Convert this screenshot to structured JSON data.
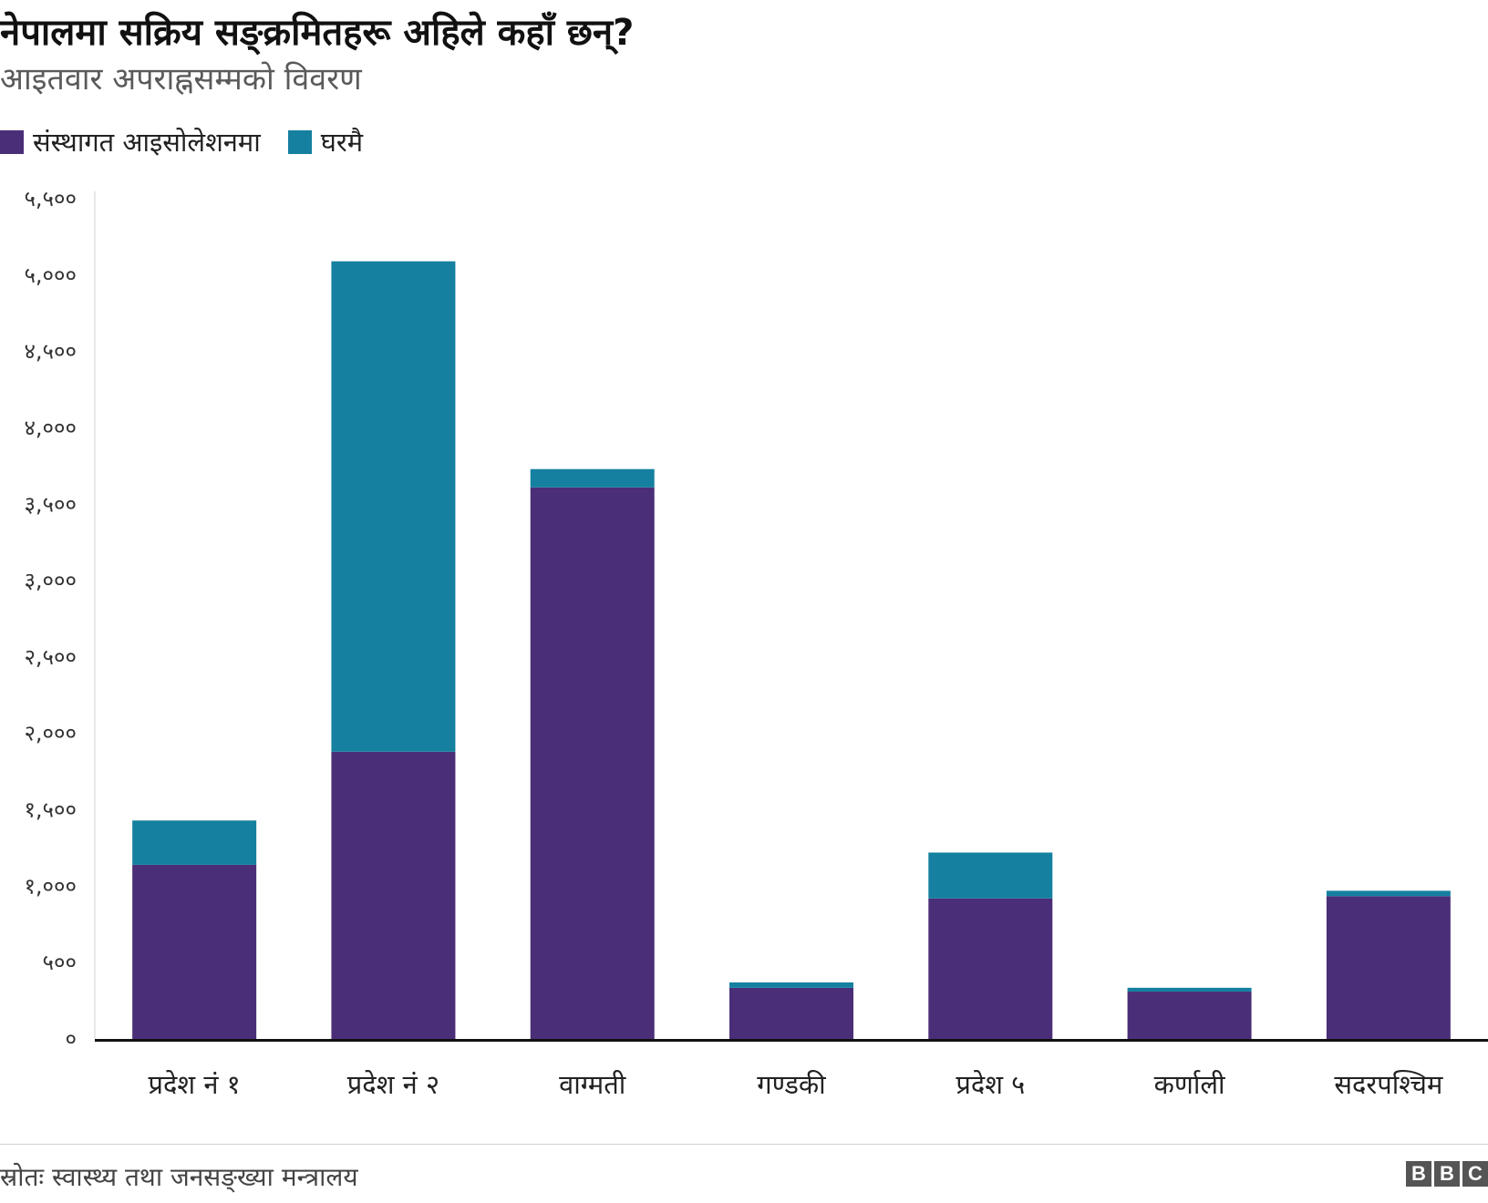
{
  "title": "नेपालमा सक्रिय सङ्क्रमितहरू अहिले कहाँ छन्?",
  "subtitle": "आइतवार अपराह्नसम्मको विवरण",
  "source": "स्रोतः स्वास्थ्य तथा जनसङ्ख्या मन्त्रालय",
  "logo": [
    "B",
    "B",
    "C"
  ],
  "colors": {
    "institutional": "#4b2e78",
    "home": "#1580a0"
  },
  "chart_data": {
    "type": "bar",
    "stacked": true,
    "categories": [
      "प्रदेश नं १",
      "प्रदेश नं २",
      "वाग्मती",
      "गण्डकी",
      "प्रदेश ५",
      "कर्णाली",
      "सुदूरपश्चिम"
    ],
    "series": [
      {
        "name": "संस्थागत आइसोलेशनमा",
        "values": [
          1140,
          1880,
          3610,
          335,
          920,
          310,
          935
        ]
      },
      {
        "name": "घरमै",
        "values": [
          290,
          3210,
          120,
          35,
          300,
          25,
          35
        ]
      }
    ],
    "yticks": [
      0,
      500,
      1000,
      1500,
      2000,
      2500,
      3000,
      3500,
      4000,
      4500,
      5000,
      5500
    ],
    "ytick_labels": [
      "०",
      "५००",
      "१,०००",
      "१,५००",
      "२,०००",
      "२,५००",
      "३,०००",
      "३,५००",
      "४,०००",
      "४,५००",
      "५,०००",
      "५,५००"
    ],
    "ylim": [
      0,
      5500
    ],
    "grid": false,
    "legend_position": "top-left"
  }
}
